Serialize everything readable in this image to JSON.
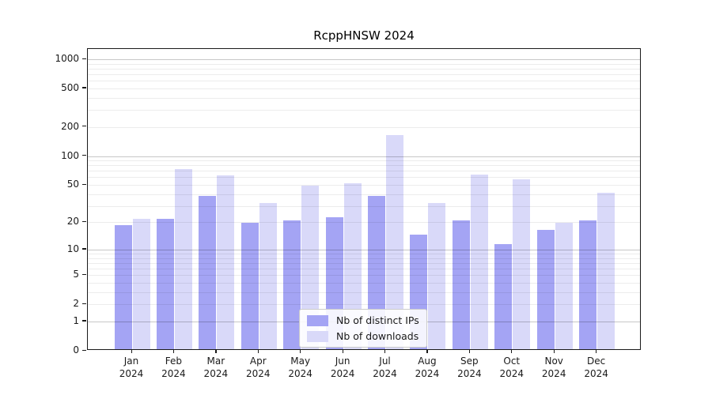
{
  "title": "RcppHNSW 2024",
  "legend": {
    "items": [
      {
        "label": "Nb of distinct IPs",
        "color": "#a4a4f4"
      },
      {
        "label": "Nb of downloads",
        "color": "#d9d9f9"
      }
    ]
  },
  "chart_data": {
    "type": "bar",
    "title": "RcppHNSW 2024",
    "categories": [
      "Jan",
      "Feb",
      "Mar",
      "Apr",
      "May",
      "Jun",
      "Jul",
      "Aug",
      "Sep",
      "Oct",
      "Nov",
      "Dec"
    ],
    "x_tick_second_line": "2024",
    "series": [
      {
        "name": "Nb of distinct IPs",
        "color": "#a4a4f4",
        "values": [
          18,
          21,
          37,
          19,
          20,
          22,
          37,
          14,
          20,
          11,
          16,
          20
        ]
      },
      {
        "name": "Nb of downloads",
        "color": "#d9d9f9",
        "values": [
          21,
          70,
          60,
          31,
          47,
          50,
          160,
          31,
          62,
          55,
          19,
          40
        ]
      }
    ],
    "xlabel": "",
    "ylabel": "",
    "y_axis": {
      "scale": "log1p",
      "tick_labels": [
        1000,
        500,
        200,
        100,
        50,
        20,
        10,
        5,
        2,
        1,
        0
      ],
      "min": 0,
      "max": 1276
    },
    "grid": true,
    "legend_position": "lower-center"
  }
}
